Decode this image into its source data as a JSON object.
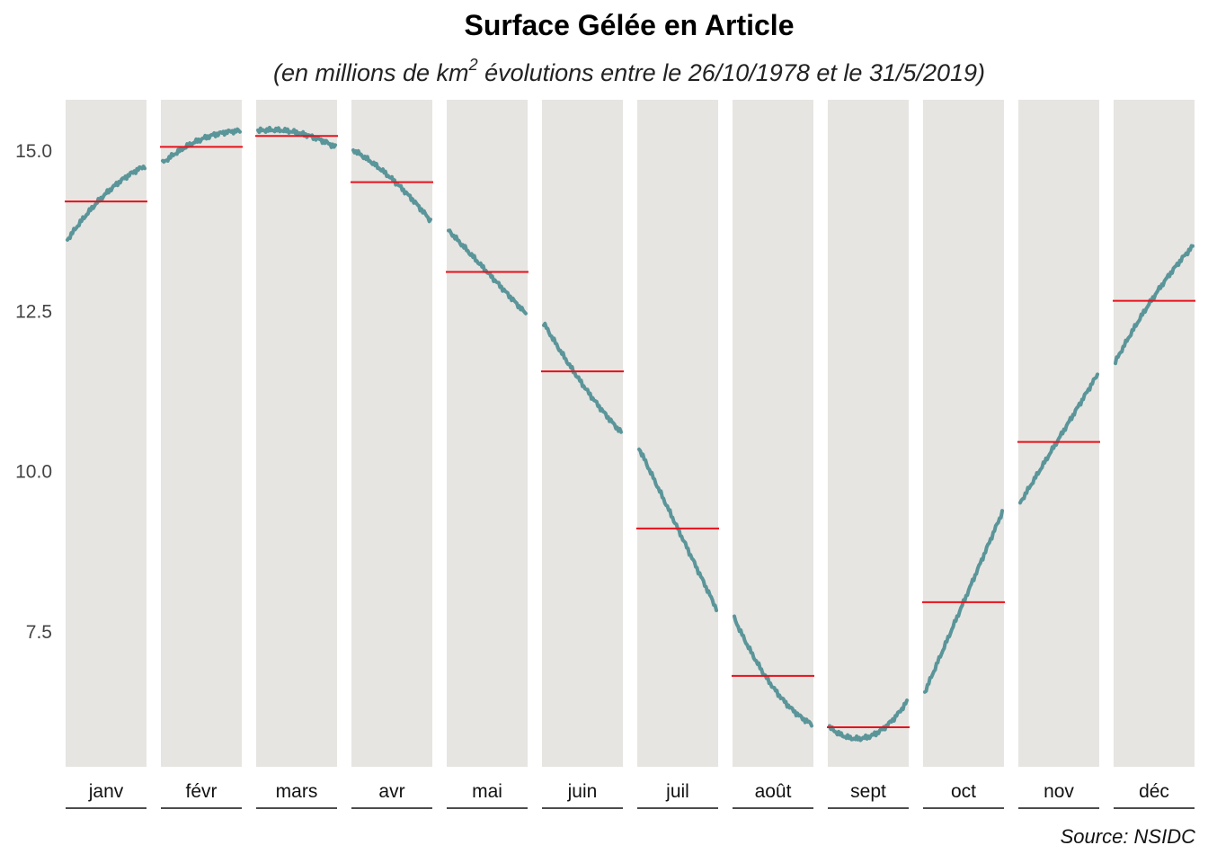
{
  "title": "Surface Gélée en Article",
  "subtitle": {
    "prefix": "(en millions de km",
    "superscript": "2",
    "suffix": " évolutions entre le 26/10/1978 et le 31/5/2019)"
  },
  "source": "Source: NSIDC",
  "colors": {
    "panel_bg": "#e6e5e2",
    "line": "#5a9599",
    "mean_line": "#e8101a",
    "axis_text": "#444444"
  },
  "chart_data": {
    "type": "line",
    "facet_by": "month",
    "y_ticks": [
      7.5,
      10.0,
      12.5,
      15.0
    ],
    "y_tick_labels": [
      "7.5",
      "10.0",
      "12.5",
      "15.0"
    ],
    "ylim": [
      5.4,
      15.8
    ],
    "grid": false,
    "panels": [
      {
        "label": "janv",
        "start": 13.6,
        "end": 14.75,
        "curve": 0.15,
        "mean": 14.2
      },
      {
        "label": "févr",
        "start": 14.8,
        "end": 15.3,
        "curve": 0.12,
        "mean": 15.05
      },
      {
        "label": "mars",
        "start": 15.3,
        "end": 15.05,
        "curve": 0.1,
        "mean": 15.22
      },
      {
        "label": "avr",
        "start": 15.0,
        "end": 13.9,
        "curve": 0.1,
        "mean": 14.5
      },
      {
        "label": "mai",
        "start": 13.75,
        "end": 12.45,
        "curve": 0.0,
        "mean": 13.1
      },
      {
        "label": "juin",
        "start": 12.3,
        "end": 10.6,
        "curve": -0.1,
        "mean": 11.55
      },
      {
        "label": "juil",
        "start": 10.35,
        "end": 7.85,
        "curve": 0.0,
        "mean": 9.1
      },
      {
        "label": "août",
        "start": 7.7,
        "end": 6.05,
        "curve": -0.25,
        "mean": 6.8
      },
      {
        "label": "sept",
        "start": 6.0,
        "end": 6.4,
        "curve": -0.35,
        "mean": 6.0
      },
      {
        "label": "oct",
        "start": 6.55,
        "end": 9.35,
        "curve": 0.0,
        "mean": 7.95
      },
      {
        "label": "nov",
        "start": 9.5,
        "end": 11.5,
        "curve": 0.0,
        "mean": 10.45
      },
      {
        "label": "déc",
        "start": 11.7,
        "end": 13.5,
        "curve": 0.12,
        "mean": 12.65
      }
    ]
  }
}
